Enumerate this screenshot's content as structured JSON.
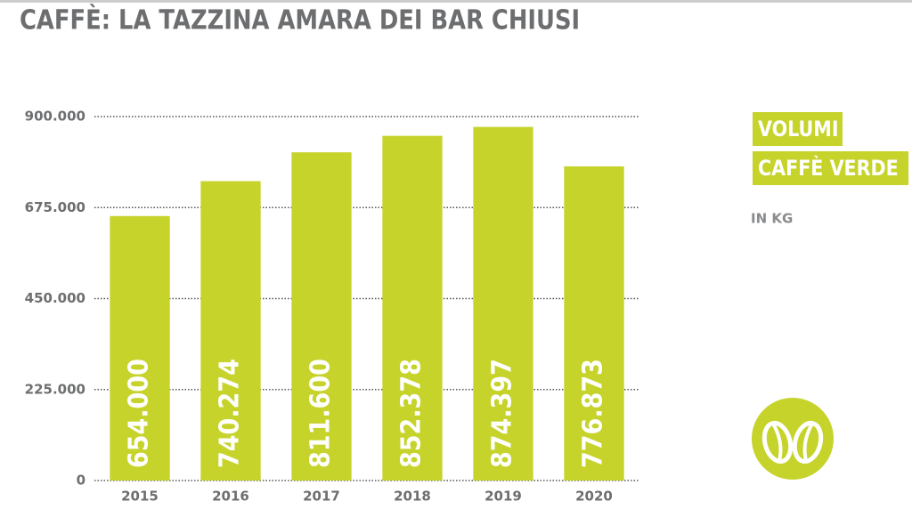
{
  "chart_data": {
    "type": "bar",
    "title": "CAFFÈ: LA TAZZINA AMARA DEI BAR CHIUSI",
    "categories": [
      "2015",
      "2016",
      "2017",
      "2018",
      "2019",
      "2020"
    ],
    "values": [
      654000,
      740274,
      811600,
      852378,
      874397,
      776873
    ],
    "value_labels": [
      "654.000",
      "740.274",
      "811.600",
      "852.378",
      "874.397",
      "776.873"
    ],
    "color": "#c6d32b",
    "ylim": [
      0,
      900000
    ],
    "yticks": [
      0,
      {
        "value": 225000,
        "label": "225.000"
      },
      {
        "value": 450000,
        "label": "450.000"
      },
      {
        "value": 675000,
        "label": "675.000"
      },
      {
        "value": 900000,
        "label": "900.000"
      }
    ],
    "grid": true,
    "annotations": [
      "VOLUMI",
      "CAFFÈ VERDE",
      "IN KG"
    ]
  }
}
